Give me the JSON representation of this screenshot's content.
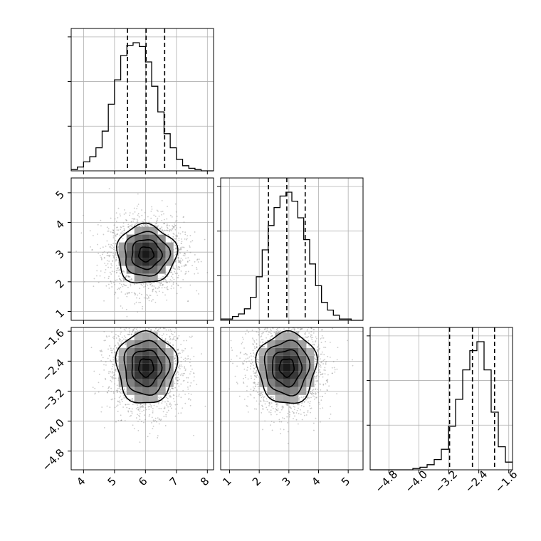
{
  "chart_data": {
    "type": "corner",
    "title": "",
    "background": "#ffffff",
    "grid": true,
    "parameters": [
      {
        "label": "",
        "range": [
          3.6,
          8.2
        ],
        "ticks": [
          4,
          5,
          6,
          7,
          8
        ],
        "tick_labels": [
          "4",
          "5",
          "6",
          "7",
          "8"
        ],
        "quantiles": [
          5.42,
          6.02,
          6.62
        ],
        "hist_bins": [
          3.6,
          8.2,
          23
        ],
        "hist_counts": [
          0.01,
          0.03,
          0.07,
          0.11,
          0.18,
          0.31,
          0.52,
          0.71,
          0.9,
          0.98,
          1.0,
          0.97,
          0.85,
          0.66,
          0.46,
          0.29,
          0.18,
          0.09,
          0.04,
          0.02,
          0.01,
          0.0,
          0.0
        ],
        "hist_yticks": [
          0.32,
          0.64,
          0.96
        ]
      },
      {
        "label": "",
        "range": [
          0.7,
          5.5
        ],
        "ticks": [
          1,
          2,
          3,
          4,
          5
        ],
        "tick_labels": [
          "1",
          "2",
          "3",
          "4",
          "5"
        ],
        "quantiles": [
          2.31,
          2.93,
          3.55
        ],
        "hist_bins": [
          0.7,
          5.5,
          24
        ],
        "hist_counts": [
          0.01,
          0.01,
          0.03,
          0.05,
          0.09,
          0.18,
          0.34,
          0.55,
          0.74,
          0.88,
          0.97,
          1.0,
          0.93,
          0.8,
          0.63,
          0.44,
          0.27,
          0.14,
          0.08,
          0.04,
          0.01,
          0.01,
          0.0,
          0.0
        ],
        "hist_yticks": [
          0.32,
          0.64,
          0.96
        ]
      },
      {
        "label": "",
        "range": [
          -5.3,
          -1.5
        ],
        "ticks": [
          -4.8,
          -4.0,
          -3.2,
          -2.4,
          -1.6
        ],
        "tick_labels": [
          "−4.8",
          "−4.0",
          "−3.2",
          "−2.4",
          "−1.6"
        ],
        "quantiles": [
          -3.18,
          -2.57,
          -1.98
        ],
        "hist_bins": [
          -5.3,
          -1.5,
          20
        ],
        "hist_counts": [
          0.0,
          0.0,
          0.0,
          0.0,
          0.0,
          0.0,
          0.01,
          0.02,
          0.04,
          0.08,
          0.16,
          0.34,
          0.55,
          0.78,
          0.93,
          1.0,
          0.78,
          0.45,
          0.18,
          0.06
        ],
        "hist_yticks": [
          0.32,
          0.64,
          0.96
        ]
      }
    ],
    "pairs": [
      {
        "x": 0,
        "y": 1,
        "center": [
          6.02,
          2.93
        ],
        "sigma": [
          0.6,
          0.62
        ],
        "contour_levels": [
          0.4,
          0.8,
          1.2,
          1.6
        ]
      },
      {
        "x": 0,
        "y": 2,
        "center": [
          6.02,
          -2.57
        ],
        "sigma": [
          0.6,
          0.6
        ],
        "contour_levels": [
          0.4,
          0.8,
          1.2,
          1.6
        ]
      },
      {
        "x": 1,
        "y": 2,
        "center": [
          2.93,
          -2.57
        ],
        "sigma": [
          0.62,
          0.6
        ],
        "contour_levels": [
          0.4,
          0.8,
          1.2,
          1.6
        ]
      }
    ]
  }
}
